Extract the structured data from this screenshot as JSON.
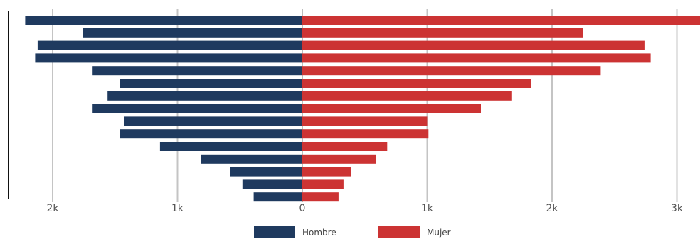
{
  "chart_data": {
    "type": "bar",
    "orientation": "horizontal",
    "layout": "population-pyramid",
    "xlim": [
      -2.2,
      3.2
    ],
    "x_ticks": [
      {
        "value": -2,
        "label": "2k"
      },
      {
        "value": -1,
        "label": "1k"
      },
      {
        "value": 0,
        "label": "0"
      },
      {
        "value": 1,
        "label": "1k"
      },
      {
        "value": 2,
        "label": "2k"
      },
      {
        "value": 3,
        "label": "3k"
      }
    ],
    "grid": true,
    "legend_position": "bottom-center",
    "series": [
      {
        "name": "Hombre",
        "color": "#1f3a5f",
        "side": "left",
        "values": [
          2.22,
          1.76,
          2.12,
          2.14,
          1.68,
          1.46,
          1.56,
          1.68,
          1.43,
          1.46,
          1.14,
          0.81,
          0.58,
          0.48,
          0.39
        ]
      },
      {
        "name": "Mujer",
        "color": "#cc3333",
        "side": "right",
        "values": [
          3.22,
          2.25,
          2.74,
          2.79,
          2.39,
          1.83,
          1.68,
          1.43,
          1.0,
          1.01,
          0.68,
          0.59,
          0.39,
          0.33,
          0.29
        ]
      }
    ]
  }
}
